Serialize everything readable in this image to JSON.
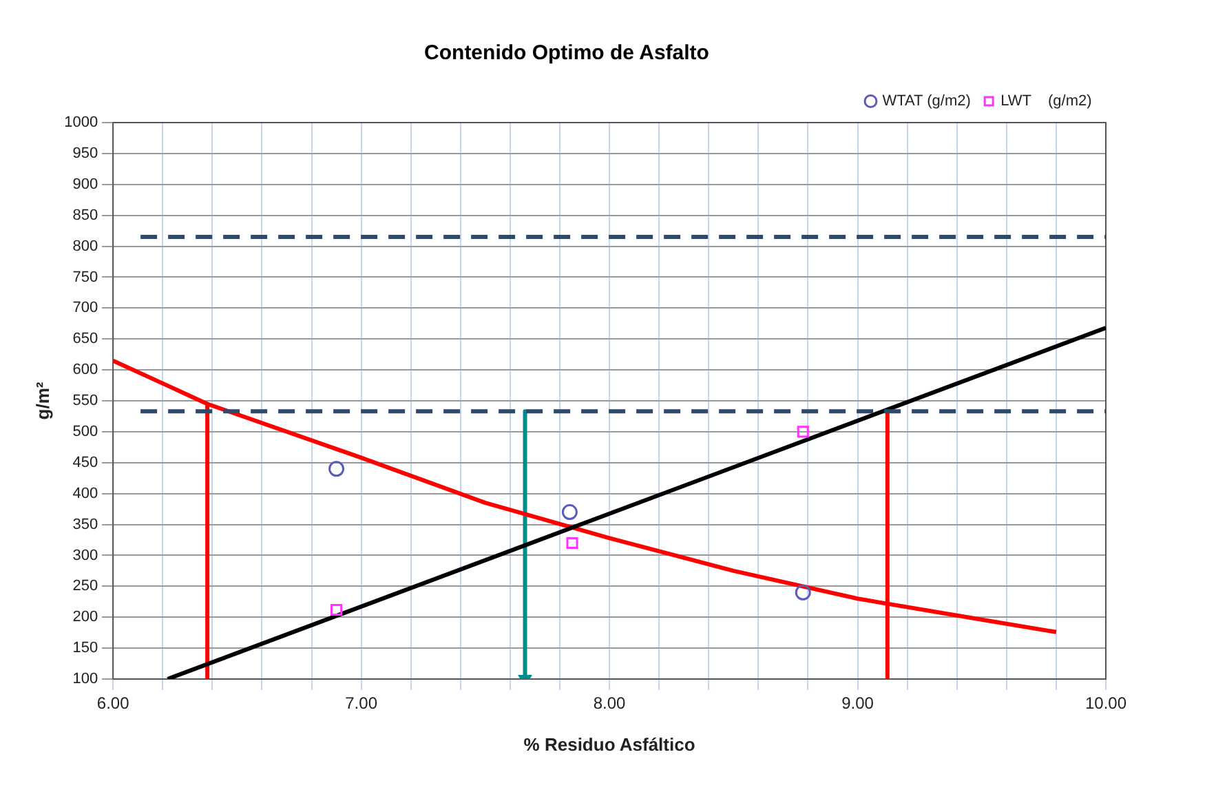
{
  "chart_data": {
    "type": "scatter",
    "title": "Contenido Optimo de Asfalto",
    "xlabel": "% Residuo Asfáltico",
    "ylabel": "g/m²",
    "xlim": [
      6,
      10
    ],
    "ylim": [
      100,
      1000
    ],
    "xticks": [
      {
        "value": 6,
        "label": "6.00"
      },
      {
        "value": 6.2,
        "label": null
      },
      {
        "value": 6.4,
        "label": null
      },
      {
        "value": 6.6,
        "label": null
      },
      {
        "value": 6.8,
        "label": null
      },
      {
        "value": 7,
        "label": "7.00"
      },
      {
        "value": 7.2,
        "label": null
      },
      {
        "value": 7.4,
        "label": null
      },
      {
        "value": 7.6,
        "label": null
      },
      {
        "value": 7.8,
        "label": null
      },
      {
        "value": 8,
        "label": "8.00"
      },
      {
        "value": 8.2,
        "label": null
      },
      {
        "value": 8.4,
        "label": null
      },
      {
        "value": 8.6,
        "label": null
      },
      {
        "value": 8.8,
        "label": null
      },
      {
        "value": 9,
        "label": "9.00"
      },
      {
        "value": 9.2,
        "label": null
      },
      {
        "value": 9.4,
        "label": null
      },
      {
        "value": 9.6,
        "label": null
      },
      {
        "value": 9.8,
        "label": null
      },
      {
        "value": 10,
        "label": "10.00"
      }
    ],
    "yticks": [
      100,
      150,
      200,
      250,
      300,
      350,
      400,
      450,
      500,
      550,
      600,
      650,
      700,
      750,
      800,
      850,
      900,
      950,
      1000
    ],
    "grid": true,
    "legend": "top right",
    "series": [
      {
        "name": "WTAT (g/m2)",
        "marker": "circle",
        "color": "#5b5bb8",
        "x": [
          6.9,
          7.84,
          8.78
        ],
        "values": [
          440,
          370,
          240
        ]
      },
      {
        "name": "LWT    (g/m2)",
        "marker": "square",
        "color": "#ff33ff",
        "x": [
          6.9,
          7.85,
          8.78
        ],
        "values": [
          212,
          320,
          500
        ]
      },
      {
        "type": "line",
        "marker": "none",
        "color": "#000000",
        "x": [
          6.22,
          10
        ],
        "values": [
          100,
          668
        ]
      },
      {
        "type": "line",
        "marker": "none",
        "color": "#ff0000",
        "x": [
          6,
          6.38,
          7,
          7.5,
          8,
          8.5,
          9,
          9.5,
          9.8
        ],
        "values": [
          615,
          545,
          458,
          385,
          328,
          275,
          230,
          196,
          176
        ]
      },
      {
        "type": "line",
        "marker": "none",
        "color": "#ff0000",
        "x": [
          6.38,
          6.38
        ],
        "values": [
          545,
          100
        ]
      },
      {
        "type": "line",
        "marker": "none",
        "color": "#ff0000",
        "x": [
          9.12,
          9.12
        ],
        "values": [
          535,
          100
        ]
      },
      {
        "type": "line",
        "marker": "triangle",
        "color": "#008b8b",
        "x": [
          7.66,
          7.66
        ],
        "values": [
          533,
          100
        ]
      }
    ],
    "ref_lines": [
      {
        "axis": "y",
        "value": 815,
        "color": "#2e4a6b",
        "line_style": "dashed"
      },
      {
        "axis": "y",
        "value": 533,
        "color": "#2e4a6b",
        "line_style": "dashed"
      }
    ]
  }
}
